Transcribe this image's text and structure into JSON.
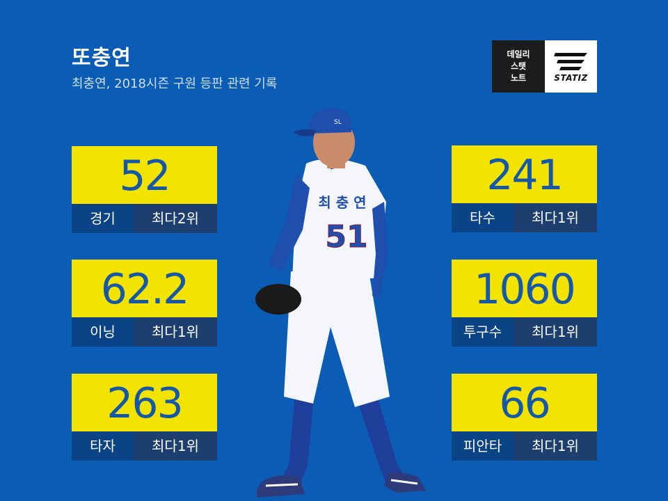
{
  "header": {
    "title": "또충연",
    "subtitle": "최충연, 2018시즌 구원 등판 관련 기록"
  },
  "logo": {
    "line1": "데일리",
    "line2": "스탯",
    "line3": "노트",
    "brand": "STATIZ"
  },
  "player": {
    "jersey_name": "최 충 연",
    "jersey_number": "51"
  },
  "stats_left": [
    {
      "value": "52",
      "label": "경기",
      "rank": "최다2위"
    },
    {
      "value": "62.2",
      "label": "이닝",
      "rank": "최다1위"
    },
    {
      "value": "263",
      "label": "타자",
      "rank": "최다1위"
    }
  ],
  "stats_right": [
    {
      "value": "241",
      "label": "타수",
      "rank": "최다1위"
    },
    {
      "value": "1060",
      "label": "투구수",
      "rank": "최다1위"
    },
    {
      "value": "66",
      "label": "피안타",
      "rank": "최다1위"
    }
  ],
  "colors": {
    "background": "#0a5cb5",
    "value_box": "#f2e400",
    "value_text": "#1557a9",
    "label_box": "#0a4386",
    "rank_box": "#1c3f70"
  }
}
